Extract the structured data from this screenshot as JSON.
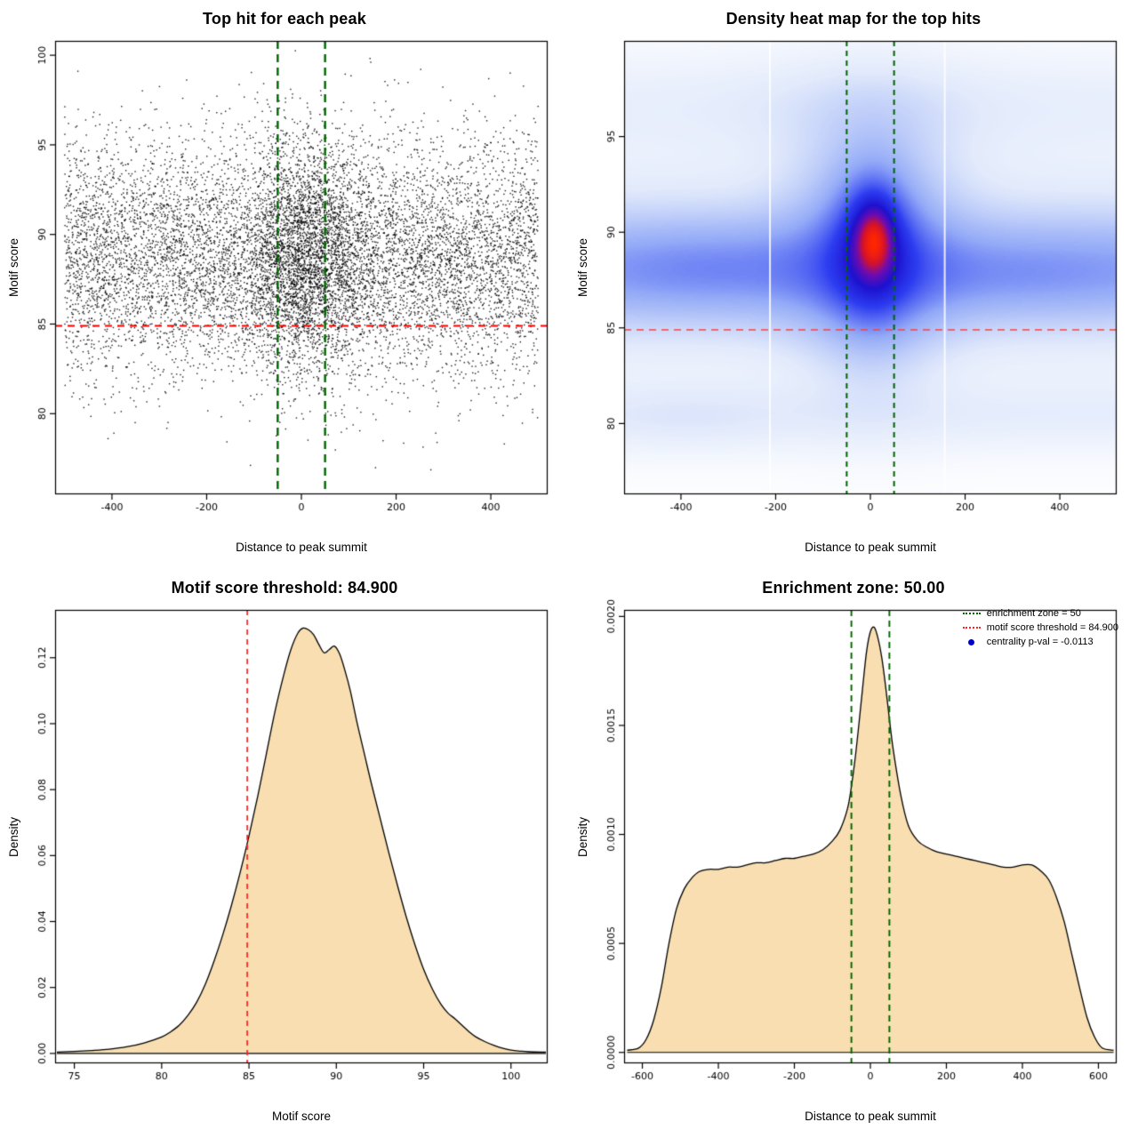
{
  "layout": {
    "background": "#ffffff",
    "grid": "2x2",
    "panel_size": 640
  },
  "chart_data": [
    {
      "id": "top-hit-scatter",
      "type": "scatter",
      "title": "Top hit for each peak",
      "xlabel": "Distance to peak summit",
      "ylabel": "Motif score",
      "xlim": [
        -520,
        520
      ],
      "ylim": [
        75.5,
        100.8
      ],
      "xticks": [
        -400,
        -200,
        0,
        200,
        400
      ],
      "xtick_labels": [
        "-400",
        "-200",
        "0",
        "200",
        "400"
      ],
      "yticks": [
        80,
        85,
        90,
        95,
        100
      ],
      "ytick_labels": [
        "80",
        "85",
        "90",
        "95",
        "100"
      ],
      "point_color": "#000000",
      "n_points": 11000,
      "x_dist": {
        "uniform_frac": 0.75,
        "range": [
          -500,
          500
        ],
        "cluster_mean": 15,
        "cluster_sd": 70
      },
      "y_dist": {
        "mean": 88.7,
        "sd": 3.3,
        "min": 76.3,
        "max": 100.3
      },
      "vlines": [
        {
          "x": -50,
          "color": "#006400",
          "dash": [
            9,
            6
          ],
          "width": 2.4
        },
        {
          "x": 50,
          "color": "#006400",
          "dash": [
            9,
            6
          ],
          "width": 2.4
        }
      ],
      "hlines": [
        {
          "y": 84.9,
          "color": "#ff0000",
          "dash": [
            8,
            6
          ],
          "width": 1.8
        }
      ]
    },
    {
      "id": "density-heatmap",
      "type": "heatmap",
      "title": "Density heat map for the top hits",
      "xlabel": "Distance to peak summit",
      "ylabel": "Motif score",
      "xlim": [
        -520,
        520
      ],
      "ylim": [
        76.3,
        100.0
      ],
      "xticks": [
        -400,
        -200,
        0,
        200,
        400
      ],
      "xtick_labels": [
        "-400",
        "-200",
        "0",
        "200",
        "400"
      ],
      "yticks": [
        80,
        85,
        90,
        95
      ],
      "ytick_labels": [
        "80",
        "85",
        "90",
        "95"
      ],
      "gamma": 0.6,
      "colormap": [
        [
          0.0,
          "#ffffff"
        ],
        [
          0.16,
          "#e2eafb"
        ],
        [
          0.38,
          "#93aaf7"
        ],
        [
          0.58,
          "#2c3cf0"
        ],
        [
          0.72,
          "#1c12cf"
        ],
        [
          0.83,
          "#6e0bb0"
        ],
        [
          0.92,
          "#d5122a"
        ],
        [
          1.0,
          "#ff2600"
        ]
      ],
      "components": [
        {
          "x": 0,
          "y": 88.0,
          "sx": 9999,
          "sy": 1.9,
          "w": 0.34
        },
        {
          "x": 0,
          "y": 88.6,
          "sx": 9999,
          "sy": 4.2,
          "w": 0.1
        },
        {
          "x": -330,
          "y": 88.2,
          "sx": 170,
          "sy": 1.7,
          "w": 0.12
        },
        {
          "x": 320,
          "y": 87.7,
          "sx": 170,
          "sy": 1.5,
          "w": 0.08
        },
        {
          "x": 5,
          "y": 89.2,
          "sx": 110,
          "sy": 4.0,
          "w": 0.4
        },
        {
          "x": 5,
          "y": 89.3,
          "sx": 55,
          "sy": 2.6,
          "w": 0.55
        },
        {
          "x": 8,
          "y": 89.7,
          "sx": 28,
          "sy": 1.3,
          "w": 0.85
        },
        {
          "x": 0,
          "y": 96.8,
          "sx": 9999,
          "sy": 1.7,
          "w": 0.055
        },
        {
          "x": -10,
          "y": 96.3,
          "sx": 180,
          "sy": 1.9,
          "w": 0.055
        },
        {
          "x": 0,
          "y": 80.4,
          "sx": 9999,
          "sy": 1.2,
          "w": 0.065
        },
        {
          "x": -380,
          "y": 80.3,
          "sx": 140,
          "sy": 1.1,
          "w": 0.04
        }
      ],
      "white_streaks": [
        -212,
        157
      ],
      "vlines": [
        {
          "x": -50,
          "color": "#006400",
          "dash": [
            6,
            5
          ],
          "width": 2.0
        },
        {
          "x": 50,
          "color": "#006400",
          "dash": [
            6,
            5
          ],
          "width": 2.0
        }
      ],
      "hlines": [
        {
          "y": 84.9,
          "color": "#ff4040",
          "dash": [
            8,
            6
          ],
          "width": 1.6
        }
      ]
    },
    {
      "id": "motif-score-density",
      "type": "density",
      "title": "Motif score threshold: 84.900",
      "xlabel": "Motif score",
      "ylabel": "Density",
      "xlim": [
        73.9,
        102.1
      ],
      "ylim": [
        -0.003,
        0.1345
      ],
      "xticks": [
        75,
        80,
        85,
        90,
        95,
        100
      ],
      "xtick_labels": [
        "75",
        "80",
        "85",
        "90",
        "95",
        "100"
      ],
      "yticks": [
        0,
        0.02,
        0.04,
        0.06,
        0.08,
        0.1,
        0.12
      ],
      "ytick_labels": [
        "0.00",
        "0.02",
        "0.04",
        "0.06",
        "0.08",
        "0.10",
        "0.12"
      ],
      "fill": "#f8deb0",
      "stroke": "#000000",
      "curve": {
        "x": [
          74.0,
          75,
          76,
          77,
          78,
          79,
          80,
          80.5,
          81,
          81.5,
          82,
          82.5,
          83,
          83.5,
          84,
          84.5,
          85,
          85.5,
          86,
          86.5,
          87,
          87.4,
          87.8,
          88.1,
          88.4,
          88.7,
          89.0,
          89.3,
          89.6,
          89.9,
          90.2,
          90.5,
          90.8,
          91.2,
          91.6,
          92,
          92.5,
          93,
          93.5,
          94,
          94.5,
          95,
          95.5,
          96,
          96.4,
          96.8,
          97.2,
          97.6,
          98,
          98.5,
          99,
          99.5,
          100,
          100.5,
          101,
          102
        ],
        "y": [
          0.0004,
          0.0006,
          0.0009,
          0.0013,
          0.002,
          0.0032,
          0.005,
          0.0065,
          0.0085,
          0.0115,
          0.0155,
          0.021,
          0.028,
          0.036,
          0.045,
          0.055,
          0.066,
          0.078,
          0.091,
          0.104,
          0.115,
          0.1225,
          0.1275,
          0.129,
          0.1285,
          0.127,
          0.124,
          0.1215,
          0.1225,
          0.1235,
          0.121,
          0.116,
          0.11,
          0.1,
          0.091,
          0.082,
          0.0715,
          0.061,
          0.051,
          0.0415,
          0.033,
          0.0255,
          0.0195,
          0.0148,
          0.0122,
          0.0105,
          0.0085,
          0.0066,
          0.005,
          0.0036,
          0.0025,
          0.0016,
          0.001,
          0.0007,
          0.0005,
          0.0004
        ]
      },
      "vlines": [
        {
          "x": 84.9,
          "color": "#ff2020",
          "dash": [
            6,
            5
          ],
          "width": 1.7
        }
      ],
      "hlines": []
    },
    {
      "id": "distance-density",
      "type": "density",
      "title": "Enrichment zone: 50.00",
      "xlabel": "Distance to peak summit",
      "ylabel": "Density",
      "xlim": [
        -648,
        648
      ],
      "ylim": [
        -5e-05,
        0.00203
      ],
      "xticks": [
        -600,
        -400,
        -200,
        0,
        200,
        400,
        600
      ],
      "xtick_labels": [
        "-600",
        "-400",
        "-200",
        "0",
        "200",
        "400",
        "600"
      ],
      "yticks": [
        0,
        0.0005,
        0.001,
        0.0015,
        0.002
      ],
      "ytick_labels": [
        "0.0000",
        "0.0005",
        "0.0010",
        "0.0015",
        "0.0020"
      ],
      "fill": "#f8deb0",
      "stroke": "#000000",
      "curve": {
        "x": [
          -640,
          -610,
          -590,
          -570,
          -550,
          -530,
          -510,
          -490,
          -470,
          -450,
          -425,
          -400,
          -375,
          -350,
          -325,
          -300,
          -275,
          -250,
          -225,
          -200,
          -175,
          -150,
          -125,
          -100,
          -80,
          -60,
          -50,
          -40,
          -30,
          -20,
          -10,
          0,
          10,
          20,
          30,
          40,
          50,
          60,
          80,
          100,
          125,
          150,
          175,
          200,
          225,
          250,
          275,
          300,
          325,
          350,
          375,
          400,
          425,
          450,
          470,
          490,
          510,
          530,
          550,
          570,
          590,
          610,
          640
        ],
        "y": [
          1e-05,
          2e-05,
          6e-05,
          0.00015,
          0.0003,
          0.0005,
          0.00066,
          0.00075,
          0.0008,
          0.00083,
          0.00084,
          0.00084,
          0.00085,
          0.00085,
          0.00086,
          0.00087,
          0.00087,
          0.00088,
          0.00089,
          0.00089,
          0.0009,
          0.00091,
          0.00093,
          0.00097,
          0.00102,
          0.00112,
          0.00122,
          0.00135,
          0.00151,
          0.00168,
          0.00184,
          0.00193,
          0.00195,
          0.0019,
          0.00181,
          0.00168,
          0.00153,
          0.00139,
          0.00118,
          0.00104,
          0.00097,
          0.00094,
          0.00092,
          0.00091,
          0.0009,
          0.00089,
          0.00088,
          0.00087,
          0.00086,
          0.00085,
          0.00085,
          0.00086,
          0.00086,
          0.00083,
          0.00079,
          0.00071,
          0.0006,
          0.00045,
          0.0003,
          0.00016,
          7e-05,
          2e-05,
          1e-05
        ]
      },
      "vlines": [
        {
          "x": -50,
          "color": "#006400",
          "dash": [
            7,
            5
          ],
          "width": 1.9
        },
        {
          "x": 50,
          "color": "#006400",
          "dash": [
            7,
            5
          ],
          "width": 1.9
        }
      ],
      "hlines": [],
      "legend": {
        "items": [
          {
            "label": "enrichment zone = 50",
            "color": "#006400",
            "marker": "dotted-line"
          },
          {
            "label": "motif score threshold = 84.900",
            "color": "#ff2020",
            "marker": "dotted-line"
          },
          {
            "label": "centrality p-val = -0.0113",
            "color": "#0000cd",
            "marker": "dot"
          }
        ]
      }
    }
  ]
}
